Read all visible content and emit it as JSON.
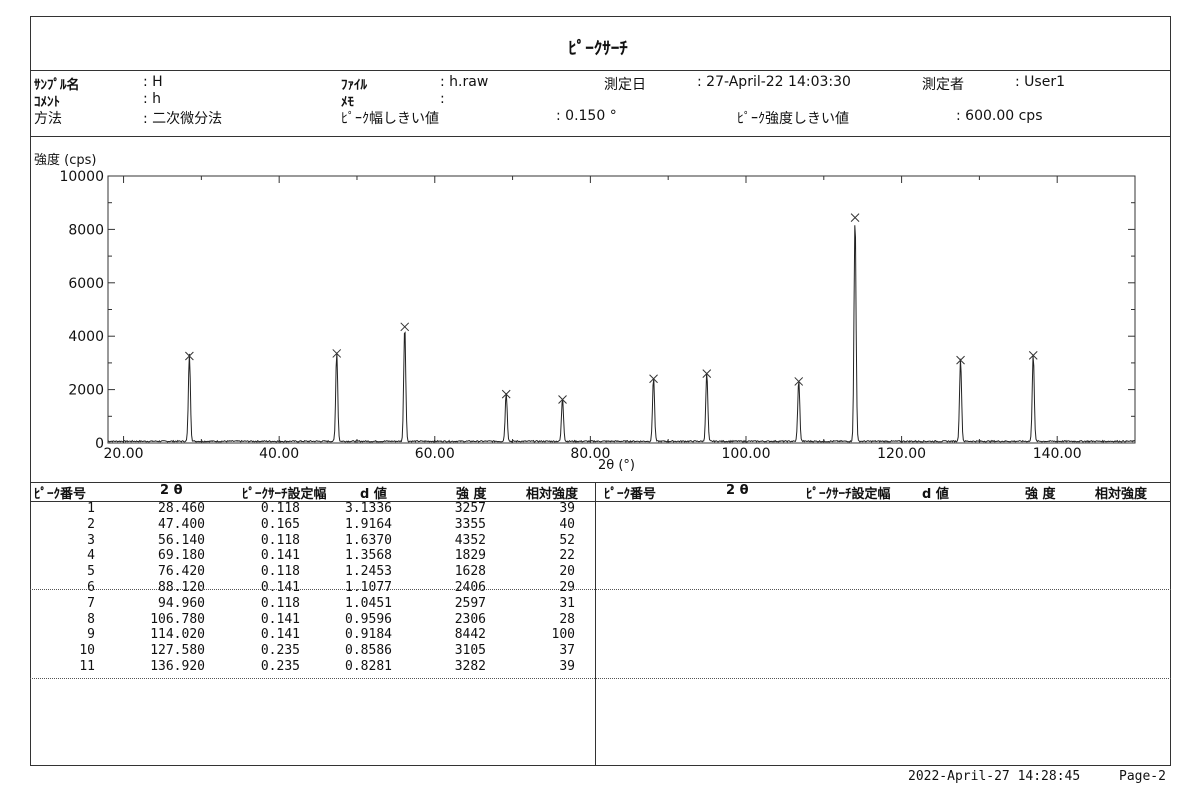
{
  "title": "ﾋﾟｰｸｻｰﾁ",
  "header": {
    "sample_label": "ｻﾝﾌﾟﾙ名",
    "sample_value": ": H",
    "file_label": "ﾌｧｲﾙ",
    "file_value": ": h.raw",
    "date_label": "測定日",
    "date_value": ": 27-April-22 14:03:30",
    "operator_label": "測定者",
    "operator_value": ": User1",
    "comment_label": "ｺﾒﾝﾄ",
    "comment_value": ": h",
    "memo_label": "ﾒﾓ",
    "memo_value": ":",
    "method_label": "方法",
    "method_value": ": 二次微分法",
    "width_threshold_label": "ﾋﾟｰｸ幅しきい値",
    "width_threshold_value": ": 0.150 °",
    "intensity_threshold_label": "ﾋﾟｰｸ強度しきい値",
    "intensity_threshold_value": ": 600.00 cps"
  },
  "chart_data": {
    "type": "line",
    "ylabel": "強度 (cps)",
    "xlabel": "2θ (°)",
    "xlim": [
      18,
      150
    ],
    "ylim": [
      0,
      10000
    ],
    "xticks": [
      "20.00",
      "40.00",
      "60.00",
      "80.00",
      "100.00",
      "120.00",
      "140.00"
    ],
    "yticks": [
      "0",
      "2000",
      "4000",
      "6000",
      "8000",
      "10000"
    ],
    "peaks_x": [
      28.46,
      47.4,
      56.14,
      69.18,
      76.42,
      88.12,
      94.96,
      106.78,
      114.02,
      127.58,
      136.92
    ],
    "peaks_y": [
      3257,
      3355,
      4352,
      1829,
      1628,
      2406,
      2597,
      2306,
      8442,
      3105,
      3282
    ],
    "grid": false,
    "legend": "none"
  },
  "table": {
    "headers": [
      "ﾋﾟｰｸ番号",
      "2 θ",
      "ﾋﾟｰｸｻｰﾁ設定幅",
      "d 値",
      "強 度",
      "相対強度"
    ],
    "rows": [
      [
        "1",
        "28.460",
        "0.118",
        "3.1336",
        "3257",
        "39"
      ],
      [
        "2",
        "47.400",
        "0.165",
        "1.9164",
        "3355",
        "40"
      ],
      [
        "3",
        "56.140",
        "0.118",
        "1.6370",
        "4352",
        "52"
      ],
      [
        "4",
        "69.180",
        "0.141",
        "1.3568",
        "1829",
        "22"
      ],
      [
        "5",
        "76.420",
        "0.118",
        "1.2453",
        "1628",
        "20"
      ],
      [
        "6",
        "88.120",
        "0.141",
        "1.1077",
        "2406",
        "29"
      ],
      [
        "7",
        "94.960",
        "0.118",
        "1.0451",
        "2597",
        "31"
      ],
      [
        "8",
        "106.780",
        "0.141",
        "0.9596",
        "2306",
        "28"
      ],
      [
        "9",
        "114.020",
        "0.141",
        "0.9184",
        "8442",
        "100"
      ],
      [
        "10",
        "127.580",
        "0.235",
        "0.8586",
        "3105",
        "37"
      ],
      [
        "11",
        "136.920",
        "0.235",
        "0.8281",
        "3282",
        "39"
      ]
    ]
  },
  "footer": {
    "timestamp": "2022-April-27  14:28:45",
    "page": "Page-2"
  }
}
